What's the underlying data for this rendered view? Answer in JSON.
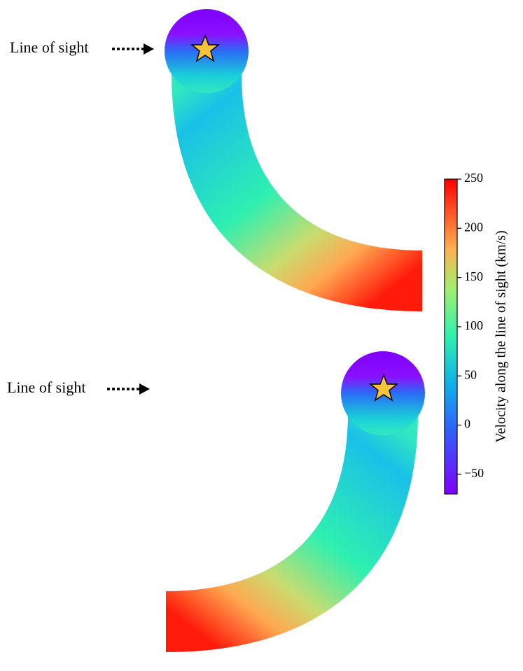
{
  "annotations": [
    "Line of sight",
    "Line of sight"
  ],
  "colorbar": {
    "label": "Velocity along the line of sight (km/s)",
    "lim": [
      -70,
      250
    ],
    "ticks": [
      {
        "value": -50,
        "label": "−50"
      },
      0,
      50,
      100,
      150,
      200,
      250
    ]
  }
}
